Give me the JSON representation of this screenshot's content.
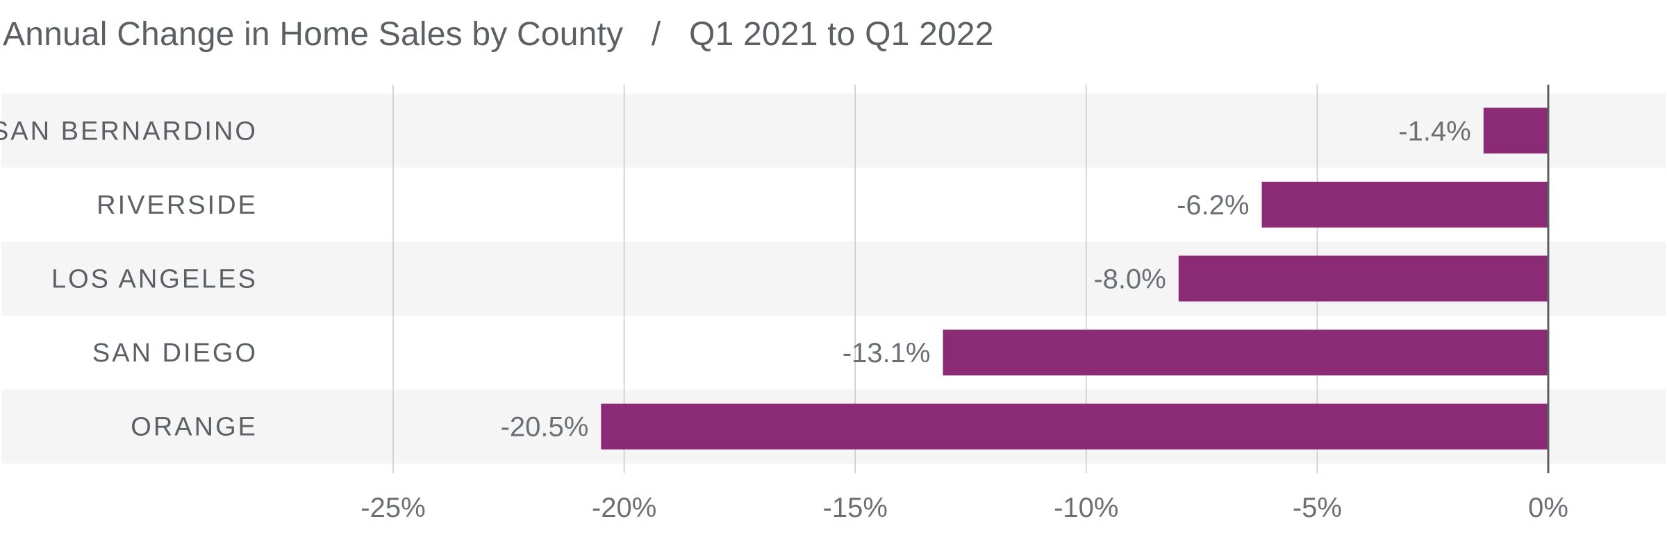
{
  "title": {
    "main": "Annual Change in Home Sales by County",
    "separator": "/",
    "period": "Q1 2021 to Q1 2022"
  },
  "colors": {
    "bar": "#8b2b76",
    "band": "#f5f5f5",
    "grid": "#c8c8c8",
    "zero_line": "#5c5f63",
    "text": "#5c5f63"
  },
  "chart_data": {
    "type": "bar",
    "orientation": "horizontal",
    "title": "Annual Change in Home Sales by County / Q1 2021 to Q1 2022",
    "categories": [
      "SAN BERNARDINO",
      "RIVERSIDE",
      "LOS ANGELES",
      "SAN DIEGO",
      "ORANGE"
    ],
    "values": [
      -1.4,
      -6.2,
      -8.0,
      -13.1,
      -20.5
    ],
    "value_labels": [
      "-1.4%",
      "-6.2%",
      "-8.0%",
      "-13.1%",
      "-20.5%"
    ],
    "xlim": [
      -25,
      2.5
    ],
    "ticks": [
      -25,
      -20,
      -15,
      -10,
      -5,
      0
    ],
    "tick_labels": [
      "-25%",
      "-20%",
      "-15%",
      "-10%",
      "-5%",
      "0%"
    ],
    "xlabel": "",
    "ylabel": "",
    "grid": true,
    "legend": "none"
  }
}
